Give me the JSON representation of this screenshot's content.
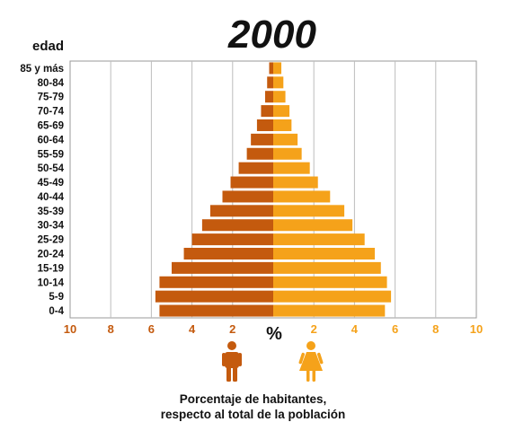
{
  "chart_data": {
    "type": "bar",
    "orientation": "horizontal-population-pyramid",
    "title": "2000",
    "ylabel": "edad",
    "center_axis_label": "%",
    "xlim": [
      0,
      10
    ],
    "ticks": [
      "10",
      "8",
      "6",
      "4",
      "2",
      "2",
      "4",
      "6",
      "8",
      "10"
    ],
    "categories": [
      "85 y más",
      "80-84",
      "75-79",
      "70-74",
      "65-69",
      "60-64",
      "55-59",
      "50-54",
      "45-49",
      "40-44",
      "35-39",
      "30-34",
      "25-29",
      "20-24",
      "15-19",
      "10-14",
      "5-9",
      "0-4"
    ],
    "series": [
      {
        "values": [
          0.2,
          0.3,
          0.4,
          0.6,
          0.8,
          1.1,
          1.3,
          1.7,
          2.1,
          2.5,
          3.1,
          3.5,
          4.0,
          4.4,
          5.0,
          5.6,
          5.8,
          5.6
        ],
        "color": "#c45a0e",
        "side": "left"
      },
      {
        "values": [
          0.4,
          0.5,
          0.6,
          0.8,
          0.9,
          1.2,
          1.4,
          1.8,
          2.2,
          2.8,
          3.5,
          3.9,
          4.5,
          5.0,
          5.3,
          5.6,
          5.8,
          5.5
        ],
        "color": "#f5a21a",
        "side": "right"
      }
    ],
    "grid": true,
    "caption_lines": [
      "Porcentaje de habitantes,",
      "respecto al total de la población"
    ]
  },
  "icons": {
    "male": "male-person-icon",
    "female": "female-person-icon"
  }
}
